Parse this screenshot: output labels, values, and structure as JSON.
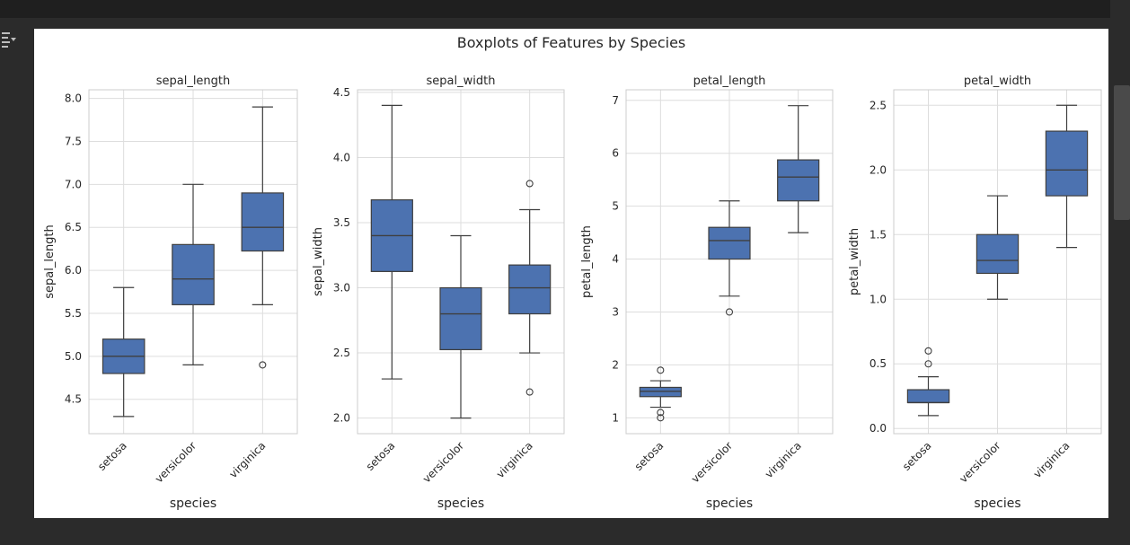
{
  "figure_title": "Boxplots of Features by Species",
  "chart_data": [
    {
      "type": "box",
      "title": "sepal_length",
      "xlabel": "species",
      "ylabel": "sepal_length",
      "categories": [
        "setosa",
        "versicolor",
        "virginica"
      ],
      "ylim": [
        4.1,
        8.1
      ],
      "yticks": [
        4.5,
        5.0,
        5.5,
        6.0,
        6.5,
        7.0,
        7.5,
        8.0
      ],
      "ytick_labels": [
        "4.5",
        "5.0",
        "5.5",
        "6.0",
        "6.5",
        "7.0",
        "7.5",
        "8.0"
      ],
      "boxes": [
        {
          "whisker_low": 4.3,
          "q1": 4.8,
          "median": 5.0,
          "q3": 5.2,
          "whisker_high": 5.8,
          "outliers": []
        },
        {
          "whisker_low": 4.9,
          "q1": 5.6,
          "median": 5.9,
          "q3": 6.3,
          "whisker_high": 7.0,
          "outliers": []
        },
        {
          "whisker_low": 5.6,
          "q1": 6.225,
          "median": 6.5,
          "q3": 6.9,
          "whisker_high": 7.9,
          "outliers": [
            4.9
          ]
        }
      ]
    },
    {
      "type": "box",
      "title": "sepal_width",
      "xlabel": "species",
      "ylabel": "sepal_width",
      "categories": [
        "setosa",
        "versicolor",
        "virginica"
      ],
      "ylim": [
        1.88,
        4.52
      ],
      "yticks": [
        2.0,
        2.5,
        3.0,
        3.5,
        4.0,
        4.5
      ],
      "ytick_labels": [
        "2.0",
        "2.5",
        "3.0",
        "3.5",
        "4.0",
        "4.5"
      ],
      "boxes": [
        {
          "whisker_low": 2.3,
          "q1": 3.125,
          "median": 3.4,
          "q3": 3.675,
          "whisker_high": 4.4,
          "outliers": []
        },
        {
          "whisker_low": 2.0,
          "q1": 2.525,
          "median": 2.8,
          "q3": 3.0,
          "whisker_high": 3.4,
          "outliers": []
        },
        {
          "whisker_low": 2.5,
          "q1": 2.8,
          "median": 3.0,
          "q3": 3.175,
          "whisker_high": 3.6,
          "outliers": [
            3.8,
            2.2
          ]
        }
      ]
    },
    {
      "type": "box",
      "title": "petal_length",
      "xlabel": "species",
      "ylabel": "petal_length",
      "categories": [
        "setosa",
        "versicolor",
        "virginica"
      ],
      "ylim": [
        0.7,
        7.2
      ],
      "yticks": [
        1,
        2,
        3,
        4,
        5,
        6,
        7
      ],
      "ytick_labels": [
        "1",
        "2",
        "3",
        "4",
        "5",
        "6",
        "7"
      ],
      "boxes": [
        {
          "whisker_low": 1.2,
          "q1": 1.4,
          "median": 1.5,
          "q3": 1.575,
          "whisker_high": 1.7,
          "outliers": [
            1.9,
            1.1,
            1.0
          ]
        },
        {
          "whisker_low": 3.3,
          "q1": 4.0,
          "median": 4.35,
          "q3": 4.6,
          "whisker_high": 5.1,
          "outliers": [
            3.0
          ]
        },
        {
          "whisker_low": 4.5,
          "q1": 5.1,
          "median": 5.55,
          "q3": 5.875,
          "whisker_high": 6.9,
          "outliers": []
        }
      ]
    },
    {
      "type": "box",
      "title": "petal_width",
      "xlabel": "species",
      "ylabel": "petal_width",
      "categories": [
        "setosa",
        "versicolor",
        "virginica"
      ],
      "ylim": [
        -0.04,
        2.62
      ],
      "yticks": [
        0.0,
        0.5,
        1.0,
        1.5,
        2.0,
        2.5
      ],
      "ytick_labels": [
        "0.0",
        "0.5",
        "1.0",
        "1.5",
        "2.0",
        "2.5"
      ],
      "boxes": [
        {
          "whisker_low": 0.1,
          "q1": 0.2,
          "median": 0.2,
          "q3": 0.3,
          "whisker_high": 0.4,
          "outliers": [
            0.6,
            0.5
          ]
        },
        {
          "whisker_low": 1.0,
          "q1": 1.2,
          "median": 1.3,
          "q3": 1.5,
          "whisker_high": 1.8,
          "outliers": []
        },
        {
          "whisker_low": 1.4,
          "q1": 1.8,
          "median": 2.0,
          "q3": 2.3,
          "whisker_high": 2.5,
          "outliers": []
        }
      ]
    }
  ],
  "colors": {
    "box_fill": "#4c72b0",
    "line": "#3f3f3f",
    "grid": "#dddddd",
    "axes_edge": "#cccccc",
    "text": "#262626",
    "figure_bg": "#ffffff",
    "page_bg": "#2b2b2b"
  },
  "icons": {
    "cell_output": "output-toggle-icon"
  }
}
